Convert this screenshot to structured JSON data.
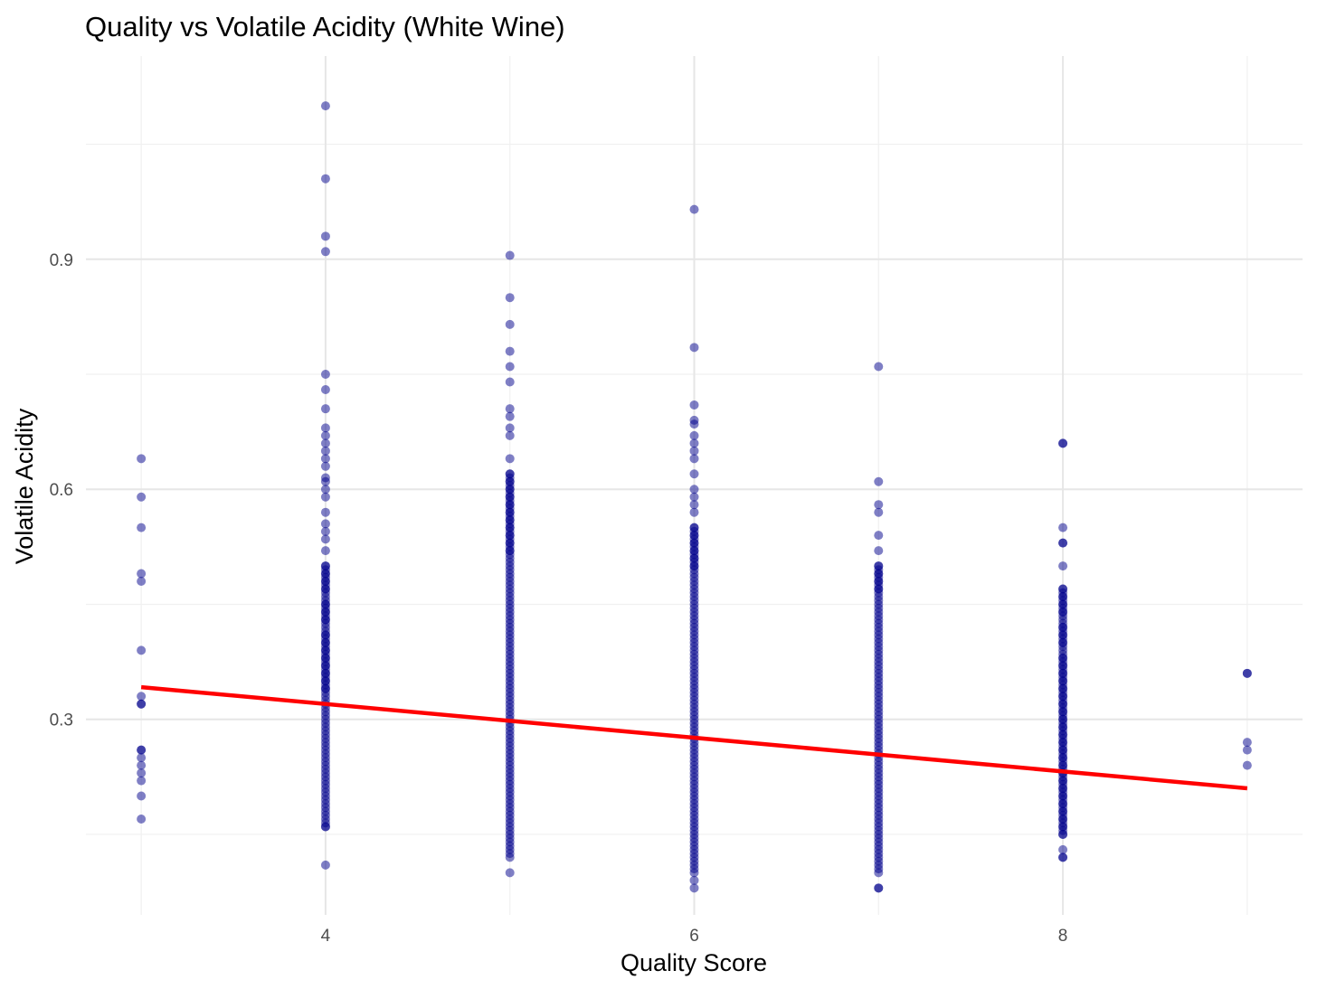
{
  "chart_data": {
    "type": "scatter",
    "title": "Quality vs Volatile Acidity (White Wine)",
    "xlabel": "Quality Score",
    "ylabel": "Volatile Acidity",
    "xlim": [
      2.7,
      9.3
    ],
    "ylim": [
      0.045,
      1.165
    ],
    "xticks": [
      4,
      6,
      8
    ],
    "xtick_labels": [
      "4",
      "6",
      "8"
    ],
    "yticks": [
      0.3,
      0.6,
      0.9
    ],
    "ytick_labels": [
      "0.3",
      "0.6",
      "0.9"
    ],
    "grid": true,
    "legend": "none",
    "point_color": "#00008b",
    "point_opacity": 0.5,
    "line_color": "#ff0000",
    "series": [
      {
        "type": "scatter",
        "points": [
          {
            "quality": 3,
            "dense_min": null,
            "dense_max": null,
            "values": [
              0.64,
              0.59,
              0.55,
              0.49,
              0.48,
              0.39,
              0.33,
              0.32,
              0.32,
              0.26,
              0.26,
              0.25,
              0.24,
              0.23,
              0.22,
              0.2,
              0.17
            ]
          },
          {
            "quality": 4,
            "dense_min": 0.16,
            "dense_max": 0.5,
            "values": [
              1.1,
              1.005,
              0.93,
              0.91,
              0.75,
              0.73,
              0.705,
              0.68,
              0.67,
              0.66,
              0.65,
              0.64,
              0.63,
              0.615,
              0.61,
              0.6,
              0.59,
              0.57,
              0.555,
              0.545,
              0.535,
              0.52,
              0.5,
              0.49,
              0.48,
              0.47,
              0.45,
              0.44,
              0.43,
              0.41,
              0.4,
              0.39,
              0.38,
              0.37,
              0.36,
              0.35,
              0.34,
              0.16,
              0.11
            ]
          },
          {
            "quality": 5,
            "dense_min": 0.12,
            "dense_max": 0.62,
            "values": [
              0.905,
              0.85,
              0.815,
              0.78,
              0.76,
              0.74,
              0.705,
              0.695,
              0.68,
              0.67,
              0.64,
              0.62,
              0.61,
              0.6,
              0.59,
              0.58,
              0.57,
              0.56,
              0.55,
              0.54,
              0.53,
              0.52,
              0.1
            ]
          },
          {
            "quality": 6,
            "dense_min": 0.1,
            "dense_max": 0.55,
            "values": [
              0.965,
              0.785,
              0.71,
              0.69,
              0.685,
              0.67,
              0.66,
              0.65,
              0.64,
              0.62,
              0.6,
              0.59,
              0.58,
              0.57,
              0.55,
              0.54,
              0.53,
              0.52,
              0.51,
              0.5,
              0.09,
              0.08
            ]
          },
          {
            "quality": 7,
            "dense_min": 0.1,
            "dense_max": 0.5,
            "values": [
              0.76,
              0.61,
              0.58,
              0.57,
              0.54,
              0.52,
              0.5,
              0.49,
              0.48,
              0.47,
              0.08,
              0.08
            ]
          },
          {
            "quality": 8,
            "dense_min": 0.15,
            "dense_max": 0.47,
            "values": [
              0.66,
              0.66,
              0.55,
              0.53,
              0.53,
              0.5,
              0.47,
              0.46,
              0.45,
              0.44,
              0.42,
              0.41,
              0.4,
              0.38,
              0.37,
              0.36,
              0.35,
              0.34,
              0.33,
              0.32,
              0.31,
              0.3,
              0.29,
              0.28,
              0.27,
              0.26,
              0.25,
              0.24,
              0.23,
              0.22,
              0.21,
              0.2,
              0.19,
              0.18,
              0.17,
              0.16,
              0.15,
              0.13,
              0.12,
              0.12
            ]
          },
          {
            "quality": 9,
            "dense_min": null,
            "dense_max": null,
            "values": [
              0.36,
              0.36,
              0.27,
              0.26,
              0.24
            ]
          }
        ]
      },
      {
        "type": "line",
        "x": [
          3,
          9
        ],
        "y": [
          0.342,
          0.21
        ]
      }
    ]
  }
}
